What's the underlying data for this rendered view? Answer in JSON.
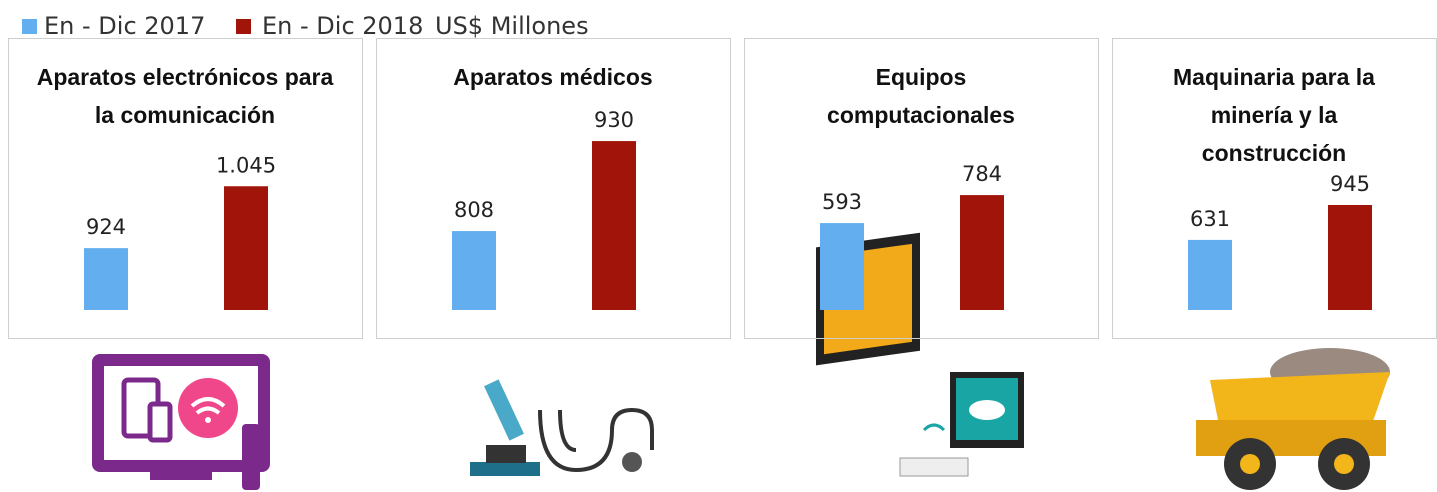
{
  "unit": "US$ Millones",
  "chart_data": [
    {
      "type": "bar",
      "title": "Aparatos electrónicos para la comunicación",
      "categories": [
        null
      ],
      "series": [
        {
          "name": "En - Dic 2017",
          "color": "#63aeef",
          "values": [
            924
          ]
        },
        {
          "name": "En - Dic 2018",
          "color": "#a0140a",
          "values": [
            1045
          ],
          "value_labels": [
            "1.045"
          ]
        }
      ],
      "ylim": [
        803,
        1155
      ]
    },
    {
      "type": "bar",
      "title": "Aparatos médicos",
      "categories": [
        null
      ],
      "series": [
        {
          "name": "En - Dic 2017",
          "color": "#63aeef",
          "values": [
            808
          ]
        },
        {
          "name": "En - Dic 2018",
          "color": "#a0140a",
          "values": [
            930
          ]
        }
      ],
      "ylim": [
        701,
        945
      ]
    },
    {
      "type": "bar",
      "title": "Equipos computacionales",
      "categories": [
        null
      ],
      "series": [
        {
          "name": "En - Dic 2017",
          "color": "#63aeef",
          "values": [
            593
          ]
        },
        {
          "name": "En - Dic 2018",
          "color": "#a0140a",
          "values": [
            784
          ]
        }
      ],
      "ylim": [
        0,
        1228
      ]
    },
    {
      "type": "bar",
      "title": "Maquinaria para la minería y la construcción",
      "categories": [
        null
      ],
      "series": [
        {
          "name": "En - Dic 2017",
          "color": "#63aeef",
          "values": [
            631
          ]
        },
        {
          "name": "En - Dic 2018",
          "color": "#a0140a",
          "values": [
            945
          ]
        }
      ],
      "ylim": [
        0,
        1620
      ]
    }
  ]
}
